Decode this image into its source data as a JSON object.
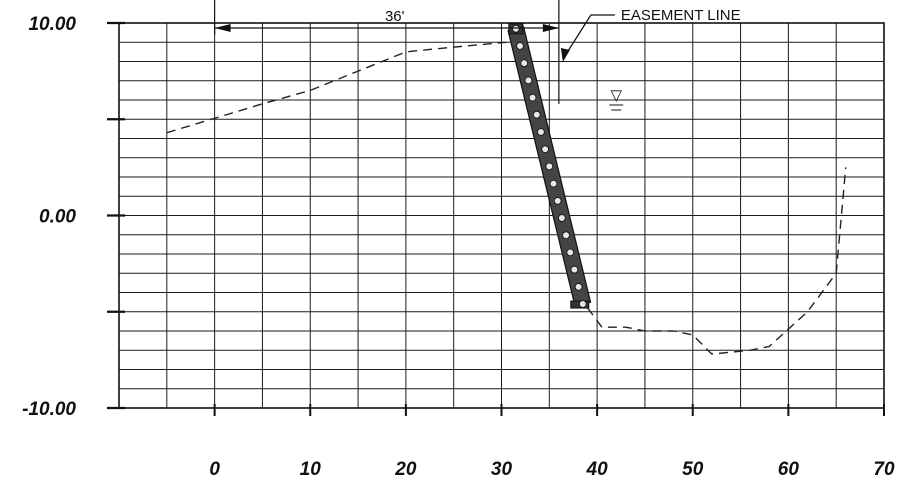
{
  "chart_data": {
    "type": "line",
    "title": "",
    "xlabel": "",
    "ylabel": "",
    "xlim": [
      -10,
      70
    ],
    "ylim": [
      -10,
      10
    ],
    "x_ticks": [
      0,
      10,
      20,
      30,
      40,
      50,
      60,
      70
    ],
    "y_ticks": [
      10,
      0,
      -10
    ],
    "x_tick_labels": [
      "0",
      "10",
      "20",
      "30",
      "40",
      "50",
      "60",
      "70"
    ],
    "y_tick_labels": [
      "10.00",
      "0.00",
      "-10.00"
    ],
    "grid": true,
    "grid_x_step": 5,
    "grid_y_step": 1,
    "series": [
      {
        "style": "dashed",
        "color": "#222222",
        "x": [
          -5,
          5,
          10,
          20,
          24,
          30.5
        ],
        "y": [
          4.3,
          5.8,
          6.5,
          8.5,
          8.7,
          9.0
        ]
      },
      {
        "style": "dashed",
        "color": "#222222",
        "x": [
          39,
          40.5,
          43,
          45,
          48,
          50,
          52,
          56,
          58,
          62,
          65,
          66
        ],
        "y": [
          -4.8,
          -5.8,
          -5.8,
          -6.0,
          -6.0,
          -6.2,
          -7.2,
          -7.0,
          -6.8,
          -5.0,
          -3.0,
          2.5
        ]
      },
      {
        "style": "riprap",
        "color": "#333333",
        "x": [
          31.5,
          38.5
        ],
        "y": [
          9.7,
          -4.6
        ]
      }
    ],
    "annotations": {
      "easement_label": "EASEMENT LINE",
      "dimension_label": "36'",
      "dimension_from_x": 0,
      "dimension_to_x": 36,
      "easement_x": 36,
      "water_symbol": "▽",
      "water_x": 42,
      "water_y": 6
    }
  }
}
